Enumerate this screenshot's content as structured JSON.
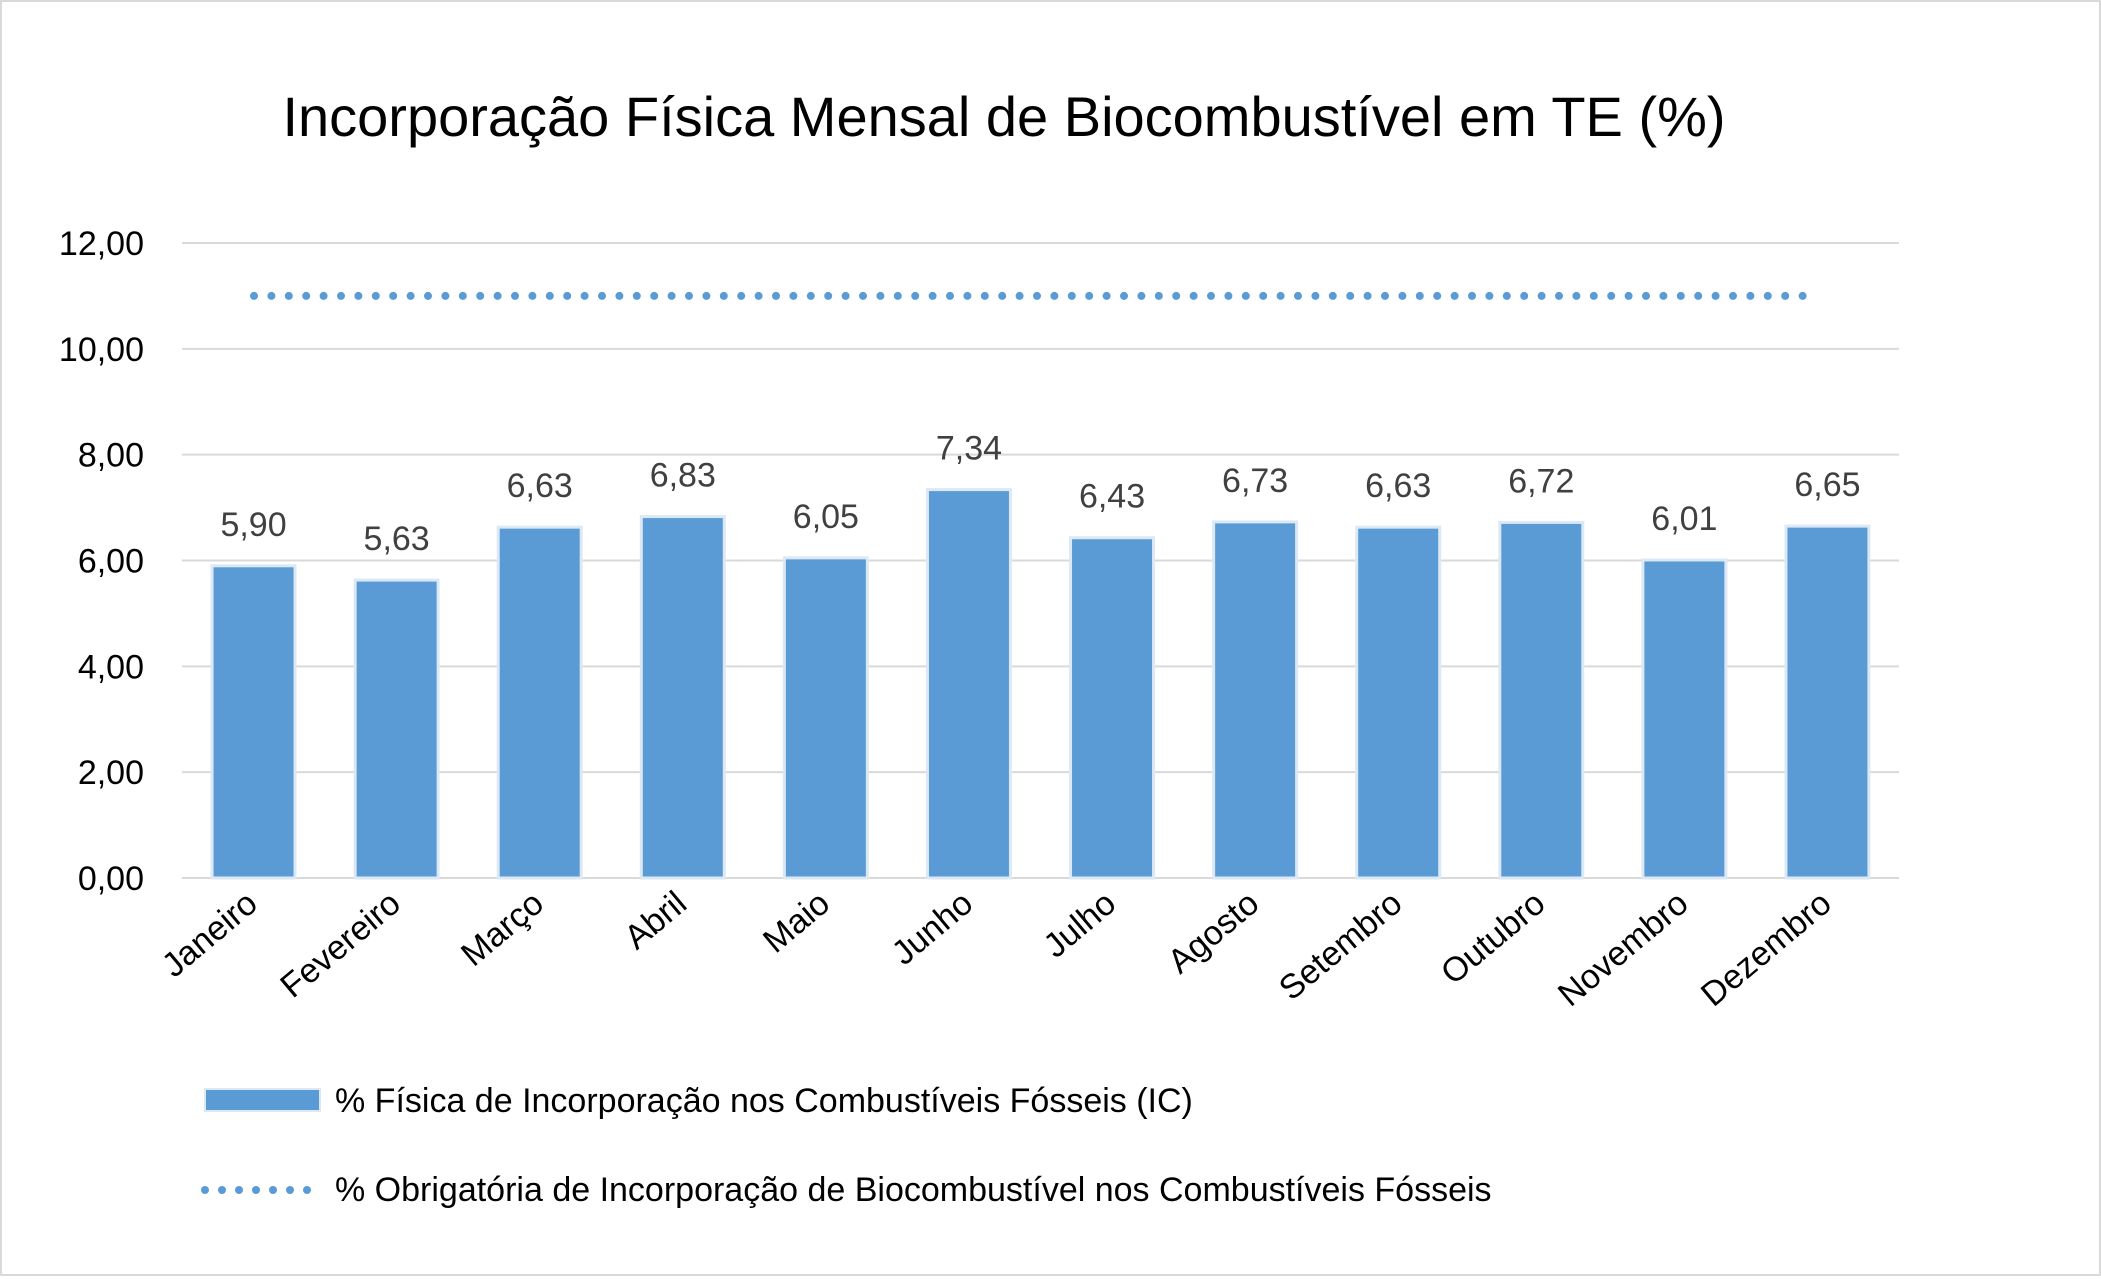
{
  "chart_data": {
    "type": "bar",
    "title": "Incorporação Física Mensal de Biocombustível em TE (%)",
    "xlabel": "",
    "ylabel": "",
    "ylim": [
      0,
      12
    ],
    "yticks": [
      "0,00",
      "2,00",
      "4,00",
      "6,00",
      "8,00",
      "10,00",
      "12,00"
    ],
    "grid": true,
    "legend_position": "bottom",
    "categories": [
      "Janeiro",
      "Fevereiro",
      "Março",
      "Abril",
      "Maio",
      "Junho",
      "Julho",
      "Agosto",
      "Setembro",
      "Outubro",
      "Novembro",
      "Dezembro"
    ],
    "series": [
      {
        "name": "% Física de Incorporação nos Combustíveis Fósseis (IC)",
        "type": "bar",
        "color": "#5b9bd5",
        "values": [
          5.9,
          5.63,
          6.63,
          6.83,
          6.05,
          7.34,
          6.43,
          6.73,
          6.63,
          6.72,
          6.01,
          6.65
        ],
        "labels": [
          "5,90",
          "5,63",
          "6,63",
          "6,83",
          "6,05",
          "7,34",
          "6,43",
          "6,73",
          "6,63",
          "6,72",
          "6,01",
          "6,65"
        ]
      },
      {
        "name": "% Obrigatória de Incorporação de Biocombustível nos Combustíveis Fósseis",
        "type": "line",
        "style": "dotted",
        "color": "#5b9bd5",
        "values": [
          11,
          11,
          11,
          11,
          11,
          11,
          11,
          11,
          11,
          11,
          11,
          11
        ]
      }
    ]
  }
}
